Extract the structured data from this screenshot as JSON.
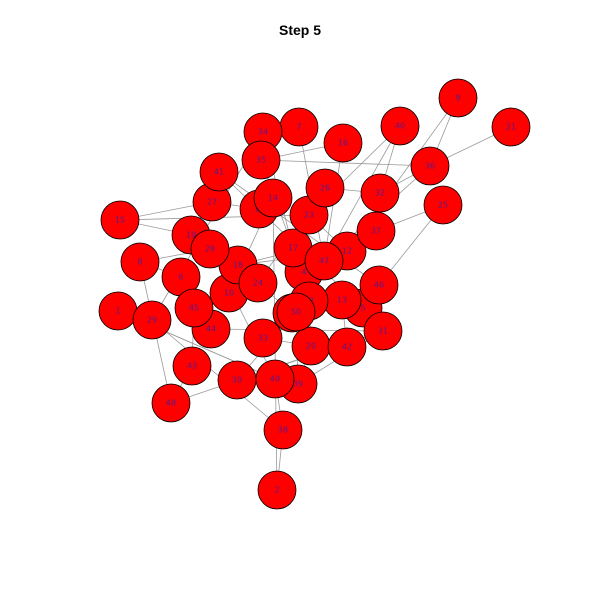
{
  "title": "Step 5",
  "colors": {
    "node_fill": "#ff0000",
    "node_stroke": "#000000",
    "edge": "#9a9a9a",
    "label": "#5a1a8a"
  },
  "nodes": [
    "1",
    "2",
    "3",
    "4",
    "5",
    "6",
    "7",
    "8",
    "9",
    "10",
    "11",
    "12",
    "13",
    "14",
    "15",
    "16",
    "17",
    "18",
    "19",
    "20",
    "21",
    "22",
    "23",
    "24",
    "25",
    "26",
    "27",
    "28",
    "29",
    "30",
    "31",
    "32",
    "33",
    "34",
    "35",
    "36",
    "37",
    "38",
    "39",
    "40",
    "41",
    "42",
    "43",
    "44",
    "45",
    "46",
    "47",
    "48",
    "49",
    "50"
  ],
  "edges": [
    [
      "9",
      "36"
    ],
    [
      "47",
      "36"
    ],
    [
      "36",
      "21"
    ],
    [
      "36",
      "32"
    ],
    [
      "47",
      "16"
    ],
    [
      "47",
      "7"
    ],
    [
      "9",
      "12"
    ],
    [
      "47",
      "40"
    ],
    [
      "16",
      "35"
    ],
    [
      "35",
      "36"
    ],
    [
      "17",
      "35"
    ],
    [
      "17",
      "26"
    ],
    [
      "32",
      "26"
    ],
    [
      "32",
      "40"
    ],
    [
      "37",
      "32"
    ],
    [
      "37",
      "18"
    ],
    [
      "37",
      "25"
    ],
    [
      "25",
      "46"
    ],
    [
      "46",
      "41"
    ],
    [
      "46",
      "5"
    ],
    [
      "5",
      "41"
    ],
    [
      "5",
      "13"
    ],
    [
      "13",
      "42"
    ],
    [
      "13",
      "22"
    ],
    [
      "22",
      "20"
    ],
    [
      "20",
      "42"
    ],
    [
      "20",
      "33"
    ],
    [
      "33",
      "50"
    ],
    [
      "50",
      "30"
    ],
    [
      "30",
      "31"
    ],
    [
      "50",
      "39"
    ],
    [
      "39",
      "31"
    ],
    [
      "31",
      "48"
    ],
    [
      "31",
      "44"
    ],
    [
      "44",
      "45"
    ],
    [
      "45",
      "43"
    ],
    [
      "43",
      "48"
    ],
    [
      "45",
      "6"
    ],
    [
      "6",
      "8"
    ],
    [
      "8",
      "28"
    ],
    [
      "28",
      "19"
    ],
    [
      "19",
      "15"
    ],
    [
      "15",
      "27"
    ],
    [
      "27",
      "11"
    ],
    [
      "11",
      "14"
    ],
    [
      "14",
      "10"
    ],
    [
      "10",
      "18"
    ],
    [
      "18",
      "12"
    ],
    [
      "12",
      "4"
    ],
    [
      "4",
      "3"
    ],
    [
      "3",
      "22"
    ],
    [
      "3",
      "24"
    ],
    [
      "24",
      "10"
    ],
    [
      "24",
      "26"
    ],
    [
      "26",
      "17"
    ],
    [
      "17",
      "34"
    ],
    [
      "34",
      "29"
    ],
    [
      "29",
      "38"
    ],
    [
      "38",
      "2"
    ],
    [
      "38",
      "49"
    ],
    [
      "49",
      "1"
    ],
    [
      "49",
      "28"
    ],
    [
      "23",
      "12"
    ],
    [
      "23",
      "40"
    ],
    [
      "2",
      "14"
    ],
    [
      "33",
      "3"
    ],
    [
      "39",
      "20"
    ],
    [
      "48",
      "8"
    ],
    [
      "1",
      "49"
    ],
    [
      "15",
      "23"
    ]
  ]
}
